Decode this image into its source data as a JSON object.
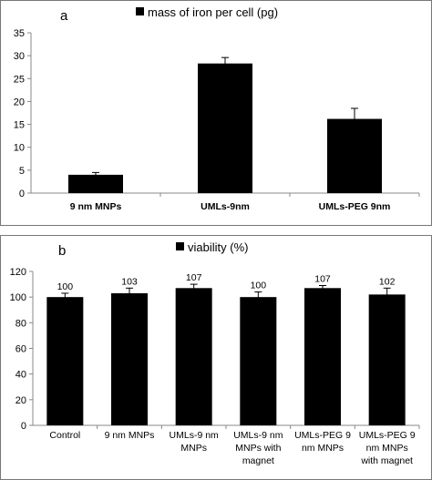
{
  "chart_data": [
    {
      "panel": "a",
      "type": "bar",
      "legend": "mass of iron per cell (pg)",
      "categories": [
        [
          "9 nm MNPs"
        ],
        [
          "UMLs-9nm"
        ],
        [
          "UMLs-PEG 9nm"
        ]
      ],
      "series": [
        {
          "name": "mass of iron per cell (pg)",
          "values": [
            4.0,
            28.3,
            16.2
          ],
          "errors": [
            0.5,
            1.3,
            2.3
          ]
        }
      ],
      "data_labels": [],
      "ylim": [
        0,
        35
      ],
      "yticks": [
        0,
        5,
        10,
        15,
        20,
        25,
        30,
        35
      ],
      "grid": false,
      "legend_position": "top"
    },
    {
      "panel": "b",
      "type": "bar",
      "legend": "viability (%)",
      "categories": [
        [
          "Control"
        ],
        [
          "9 nm MNPs"
        ],
        [
          "UMLs-9 nm",
          "MNPs"
        ],
        [
          "UMLs-9 nm",
          "MNPs with",
          "magnet"
        ],
        [
          "UMLs-PEG 9",
          "nm MNPs"
        ],
        [
          "UMLs-PEG 9",
          "nm MNPs",
          "with magnet"
        ]
      ],
      "series": [
        {
          "name": "viability (%)",
          "values": [
            100,
            103,
            107,
            100,
            107,
            102
          ],
          "errors": [
            3,
            4,
            3,
            4,
            2,
            5
          ]
        }
      ],
      "data_labels": [
        "100",
        "103",
        "107",
        "100",
        "107",
        "102"
      ],
      "ylim": [
        0,
        120
      ],
      "yticks": [
        0,
        20,
        40,
        60,
        80,
        100,
        120
      ],
      "grid": false,
      "legend_position": "top"
    }
  ]
}
